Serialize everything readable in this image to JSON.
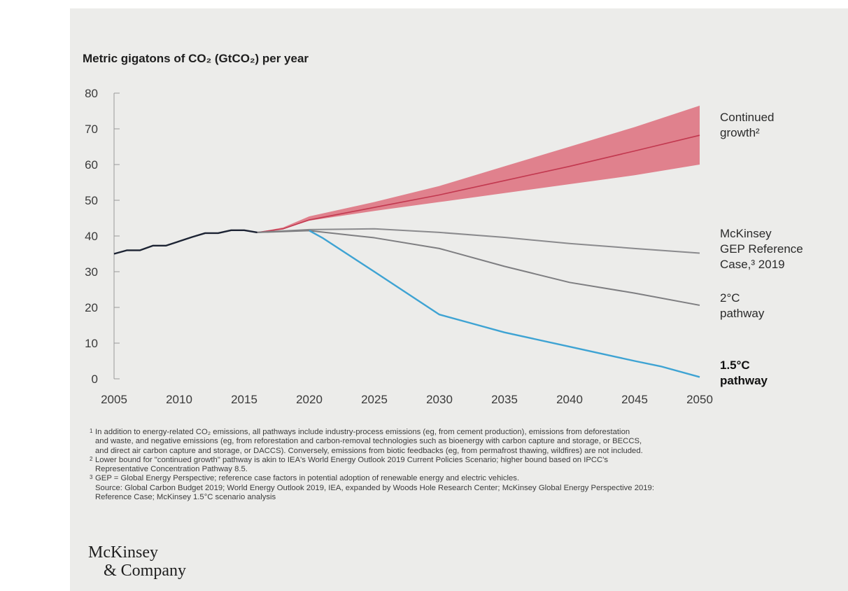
{
  "chart_data": {
    "type": "line",
    "ylabel": "Metric gigatons of CO₂ (GtCO₂) per year",
    "xlim": [
      2005,
      2050
    ],
    "ylim": [
      0,
      80
    ],
    "x_ticks": [
      "2005",
      "2010",
      "2015",
      "2020",
      "2025",
      "2030",
      "2035",
      "2040",
      "2045",
      "2050"
    ],
    "y_ticks": [
      "0",
      "10",
      "20",
      "30",
      "40",
      "50",
      "60",
      "70",
      "80"
    ],
    "grid": false,
    "legend": "inline labels at right end of lines",
    "historical": {
      "color": "#1c2333",
      "x": [
        2005,
        2006,
        2007,
        2008,
        2009,
        2010,
        2011,
        2012,
        2013,
        2014,
        2015,
        2016
      ],
      "y": [
        35,
        36,
        36,
        37.3,
        37.3,
        38.5,
        39.7,
        40.8,
        40.8,
        41.6,
        41.6,
        41
      ]
    },
    "series": [
      {
        "name": "Continued growth²",
        "color": "#c2384f",
        "band_color": "#de6f7d",
        "x": [
          2016,
          2018,
          2020,
          2025,
          2030,
          2035,
          2040,
          2045,
          2050
        ],
        "y": [
          41,
          42,
          44.5,
          48,
          51.5,
          55.5,
          59.5,
          63.8,
          68.2
        ],
        "lower": [
          41,
          42,
          44.3,
          47,
          49.5,
          52,
          54.5,
          57,
          60
        ],
        "upper": [
          41,
          42.4,
          45.5,
          49.5,
          54,
          59.5,
          65,
          70.5,
          76.5
        ]
      },
      {
        "name": "McKinsey GEP Reference Case,³ 2019",
        "color": "#8a8a8d",
        "x": [
          2016,
          2020,
          2025,
          2030,
          2035,
          2040,
          2045,
          2050
        ],
        "y": [
          41,
          41.8,
          42,
          41,
          39.6,
          37.9,
          36.5,
          35.2
        ]
      },
      {
        "name": "2°C pathway",
        "color": "#7e7e81",
        "x": [
          2016,
          2020,
          2025,
          2030,
          2035,
          2040,
          2045,
          2050
        ],
        "y": [
          41,
          41.5,
          39.5,
          36.5,
          31.5,
          27,
          24,
          20.6
        ]
      },
      {
        "name": "1.5°C pathway",
        "color": "#3ea3d3",
        "x": [
          2020,
          2021,
          2025,
          2030,
          2032,
          2035,
          2040,
          2045,
          2047,
          2050
        ],
        "y": [
          41.5,
          39.5,
          30,
          18,
          16,
          13,
          9,
          5,
          3.5,
          0.5
        ]
      }
    ],
    "labels": {
      "continued": [
        "Continued",
        "growth²"
      ],
      "reference": [
        "McKinsey",
        "GEP Reference",
        "Case,³ 2019"
      ],
      "two_degree": [
        "2°C",
        "pathway"
      ],
      "one_five": [
        "1.5°C",
        "pathway"
      ]
    }
  },
  "footnotes": [
    {
      "marker": "1",
      "lines": [
        "In addition to energy-related CO₂ emissions, all pathways include industry-process emissions (eg, from cement production), emissions from deforestation",
        "and waste, and negative emissions (eg, from reforestation and carbon-removal technologies such as bioenergy with carbon capture and storage, or BECCS,",
        "and direct air carbon capture and storage, or DACCS). Conversely, emissions from biotic feedbacks (eg, from permafrost thawing, wildfires) are not included."
      ]
    },
    {
      "marker": "2",
      "lines": [
        "Lower bound for \"continued growth\" pathway is akin to IEA's World Energy Outlook 2019 Current Policies Scenario; higher bound based on IPCC's",
        "Representative Concentration Pathway 8.5."
      ]
    },
    {
      "marker": "3",
      "lines": [
        "GEP = Global Energy Perspective; reference case factors in potential adoption of renewable energy and electric vehicles."
      ]
    },
    {
      "marker": "",
      "lines": [
        "Source: Global Carbon Budget 2019; World Energy Outlook 2019, IEA, expanded by Woods Hole Research Center; McKinsey Global Energy Perspective 2019:",
        "Reference Case; McKinsey 1.5°C scenario analysis"
      ]
    }
  ],
  "brand": {
    "line1": "McKinsey",
    "line2": "& Company"
  }
}
